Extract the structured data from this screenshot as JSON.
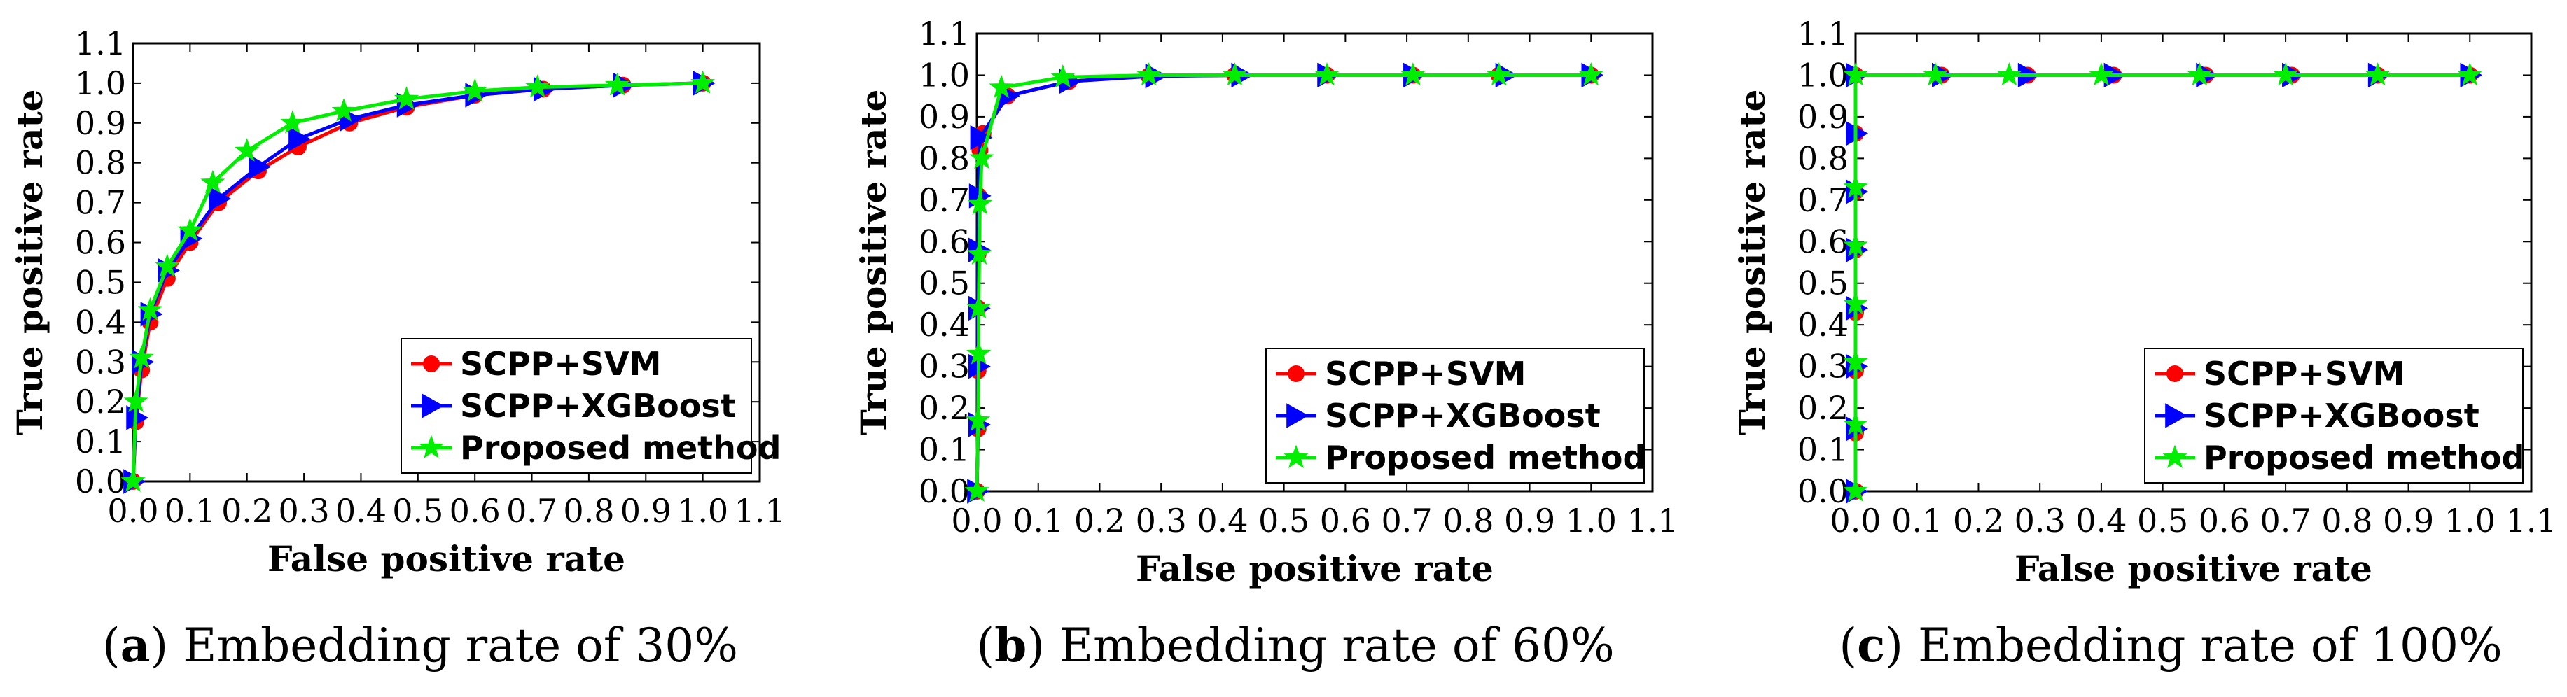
{
  "figure": {
    "colors": {
      "svm": "#ff0000",
      "xgb": "#0000ff",
      "proposed": "#00ee00"
    }
  },
  "chart_data": [
    {
      "type": "line",
      "panel": "(a)",
      "caption_label": "a",
      "caption_text": "Embedding rate of 30%",
      "xlabel": "False positive rate",
      "ylabel": "True positive rate",
      "xlim": [
        0,
        1.1
      ],
      "ylim": [
        0,
        1.1
      ],
      "xticks": [
        "0.0",
        "0.1",
        "0.2",
        "0.3",
        "0.4",
        "0.5",
        "0.6",
        "0.7",
        "0.8",
        "0.9",
        "1.0",
        "1.1"
      ],
      "yticks": [
        "0.0",
        "0.1",
        "0.2",
        "0.3",
        "0.4",
        "0.5",
        "0.6",
        "0.7",
        "0.8",
        "0.9",
        "1.0",
        "1.1"
      ],
      "legend_position": "bottom-right",
      "series": [
        {
          "name": "SCPP+SVM",
          "marker": "circle",
          "color": "#ff0000",
          "x": [
            0,
            0.005,
            0.015,
            0.03,
            0.06,
            0.1,
            0.15,
            0.22,
            0.29,
            0.38,
            0.48,
            0.6,
            0.72,
            0.86,
            1.0
          ],
          "y": [
            0,
            0.15,
            0.28,
            0.4,
            0.51,
            0.6,
            0.7,
            0.78,
            0.84,
            0.9,
            0.94,
            0.97,
            0.985,
            0.995,
            1.0
          ]
        },
        {
          "name": "SCPP+XGBoost",
          "marker": "triangle-right",
          "color": "#0000ff",
          "x": [
            0,
            0.005,
            0.015,
            0.03,
            0.06,
            0.1,
            0.15,
            0.22,
            0.29,
            0.38,
            0.48,
            0.6,
            0.72,
            0.86,
            1.0
          ],
          "y": [
            0,
            0.16,
            0.3,
            0.42,
            0.53,
            0.61,
            0.71,
            0.79,
            0.86,
            0.91,
            0.945,
            0.97,
            0.985,
            0.995,
            1.0
          ]
        },
        {
          "name": "Proposed method",
          "marker": "star",
          "color": "#00ee00",
          "x": [
            0,
            0.005,
            0.015,
            0.03,
            0.06,
            0.1,
            0.14,
            0.2,
            0.28,
            0.37,
            0.48,
            0.6,
            0.71,
            0.85,
            1.0
          ],
          "y": [
            0,
            0.2,
            0.31,
            0.43,
            0.54,
            0.63,
            0.75,
            0.83,
            0.9,
            0.93,
            0.96,
            0.98,
            0.99,
            0.995,
            1.0
          ]
        }
      ]
    },
    {
      "type": "line",
      "panel": "(b)",
      "caption_label": "b",
      "caption_text": "Embedding rate of 60%",
      "xlabel": "False positive rate",
      "ylabel": "True positive rate",
      "xlim": [
        0,
        1.1
      ],
      "ylim": [
        0,
        1.1
      ],
      "xticks": [
        "0.0",
        "0.1",
        "0.2",
        "0.3",
        "0.4",
        "0.5",
        "0.6",
        "0.7",
        "0.8",
        "0.9",
        "1.0",
        "1.1"
      ],
      "yticks": [
        "0.0",
        "0.1",
        "0.2",
        "0.3",
        "0.4",
        "0.5",
        "0.6",
        "0.7",
        "0.8",
        "0.9",
        "1.0",
        "1.1"
      ],
      "legend_position": "bottom-right",
      "series": [
        {
          "name": "SCPP+SVM",
          "marker": "circle",
          "color": "#ff0000",
          "x": [
            0,
            0.002,
            0.002,
            0.002,
            0.002,
            0.003,
            0.005,
            0.01,
            0.05,
            0.15,
            0.28,
            0.42,
            0.57,
            0.71,
            0.85,
            1.0
          ],
          "y": [
            0,
            0.15,
            0.29,
            0.44,
            0.57,
            0.71,
            0.82,
            0.86,
            0.95,
            0.985,
            0.998,
            1.0,
            1.0,
            1.0,
            1.0,
            1.0
          ]
        },
        {
          "name": "SCPP+XGBoost",
          "marker": "triangle-right",
          "color": "#0000ff",
          "x": [
            0,
            0.002,
            0.002,
            0.002,
            0.002,
            0.003,
            0.005,
            0.05,
            0.15,
            0.29,
            0.43,
            0.57,
            0.71,
            0.86,
            1.0
          ],
          "y": [
            0,
            0.16,
            0.3,
            0.44,
            0.58,
            0.71,
            0.85,
            0.95,
            0.985,
            0.998,
            1.0,
            1.0,
            1.0,
            1.0,
            1.0
          ]
        },
        {
          "name": "Proposed method",
          "marker": "star",
          "color": "#00ee00",
          "x": [
            0,
            0.002,
            0.003,
            0.003,
            0.004,
            0.005,
            0.008,
            0.04,
            0.14,
            0.28,
            0.42,
            0.57,
            0.71,
            0.85,
            1.0
          ],
          "y": [
            0,
            0.17,
            0.33,
            0.44,
            0.57,
            0.69,
            0.8,
            0.97,
            0.995,
            1.0,
            1.0,
            1.0,
            1.0,
            1.0,
            1.0
          ]
        }
      ]
    },
    {
      "type": "line",
      "panel": "(c)",
      "caption_label": "c",
      "caption_text": "Embedding rate of 100%",
      "xlabel": "False positive rate",
      "ylabel": "True positive rate",
      "xlim": [
        0,
        1.1
      ],
      "ylim": [
        0,
        1.1
      ],
      "xticks": [
        "0.0",
        "0.1",
        "0.2",
        "0.3",
        "0.4",
        "0.5",
        "0.6",
        "0.7",
        "0.8",
        "0.9",
        "1.0",
        "1.1"
      ],
      "yticks": [
        "0.0",
        "0.1",
        "0.2",
        "0.3",
        "0.4",
        "0.5",
        "0.6",
        "0.7",
        "0.8",
        "0.9",
        "1.0",
        "1.1"
      ],
      "legend_position": "bottom-right",
      "series": [
        {
          "name": "SCPP+SVM",
          "marker": "circle",
          "color": "#ff0000",
          "x": [
            0,
            0.0,
            0.0,
            0.0,
            0.0,
            0.0,
            0.0,
            0.0,
            0.14,
            0.28,
            0.42,
            0.57,
            0.71,
            0.85,
            1.0
          ],
          "y": [
            0,
            0.14,
            0.29,
            0.43,
            0.58,
            0.72,
            0.86,
            1.0,
            1.0,
            1.0,
            1.0,
            1.0,
            1.0,
            1.0,
            1.0
          ]
        },
        {
          "name": "SCPP+XGBoost",
          "marker": "triangle-right",
          "color": "#0000ff",
          "x": [
            0,
            0.0,
            0.0,
            0.0,
            0.0,
            0.0,
            0.0,
            0.0,
            0.14,
            0.28,
            0.42,
            0.57,
            0.71,
            0.85,
            1.0
          ],
          "y": [
            0,
            0.15,
            0.3,
            0.44,
            0.58,
            0.72,
            0.86,
            1.0,
            1.0,
            1.0,
            1.0,
            1.0,
            1.0,
            1.0,
            1.0
          ]
        },
        {
          "name": "Proposed method",
          "marker": "star",
          "color": "#00ee00",
          "x": [
            0,
            0.0,
            0.0,
            0.0,
            0.0,
            0.0,
            0.0,
            0.13,
            0.25,
            0.4,
            0.56,
            0.7,
            0.85,
            1.0
          ],
          "y": [
            0,
            0.16,
            0.31,
            0.45,
            0.59,
            0.73,
            1.0,
            1.0,
            1.0,
            1.0,
            1.0,
            1.0,
            1.0,
            1.0
          ]
        }
      ]
    }
  ]
}
